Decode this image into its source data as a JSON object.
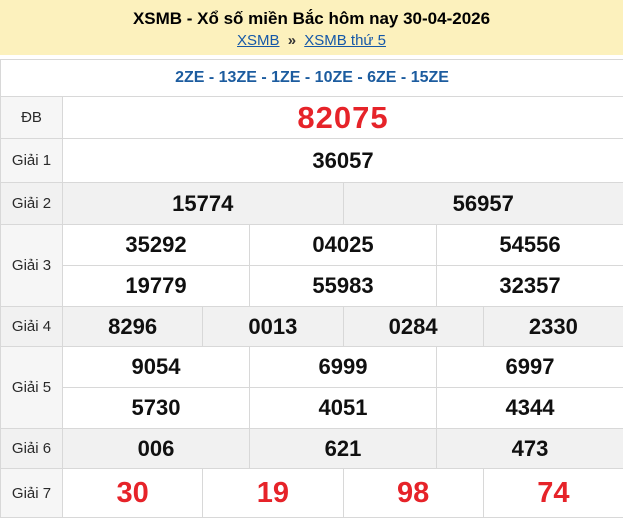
{
  "header": {
    "title": "XSMB - Xổ số miền Bắc hôm nay 30-04-2026",
    "breadcrumb": {
      "link1": "XSMB",
      "separator": "»",
      "link2": "XSMB thứ 5"
    }
  },
  "table": {
    "ze_header": "2ZE - 13ZE - 1ZE - 10ZE - 6ZE - 15ZE",
    "rows": [
      {
        "label": "ĐB",
        "values": [
          [
            "82075"
          ]
        ]
      },
      {
        "label": "Giải 1",
        "values": [
          [
            "36057"
          ]
        ]
      },
      {
        "label": "Giải 2",
        "values": [
          [
            "15774",
            "56957"
          ]
        ]
      },
      {
        "label": "Giải 3",
        "values": [
          [
            "35292",
            "04025",
            "54556"
          ],
          [
            "19779",
            "55983",
            "32357"
          ]
        ]
      },
      {
        "label": "Giải 4",
        "values": [
          [
            "8296",
            "0013",
            "0284",
            "2330"
          ]
        ]
      },
      {
        "label": "Giải 5",
        "values": [
          [
            "9054",
            "6999",
            "6997"
          ],
          [
            "5730",
            "4051",
            "4344"
          ]
        ]
      },
      {
        "label": "Giải 6",
        "values": [
          [
            "006",
            "621",
            "473"
          ]
        ]
      },
      {
        "label": "Giải 7",
        "values": [
          [
            "30",
            "19",
            "98",
            "74"
          ]
        ]
      }
    ]
  },
  "colors": {
    "header_bg": "#fcf1bd",
    "link_blue": "#1558a8",
    "codes_blue": "#1c5c9f",
    "special_red": "#e62329",
    "alt_row_bg": "#f1f1f1"
  }
}
